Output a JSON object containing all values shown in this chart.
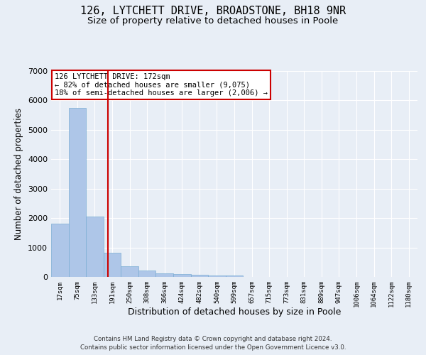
{
  "title": "126, LYTCHETT DRIVE, BROADSTONE, BH18 9NR",
  "subtitle": "Size of property relative to detached houses in Poole",
  "xlabel": "Distribution of detached houses by size in Poole",
  "ylabel": "Number of detached properties",
  "footnote1": "Contains HM Land Registry data © Crown copyright and database right 2024.",
  "footnote2": "Contains public sector information licensed under the Open Government Licence v3.0.",
  "bar_labels": [
    "17sqm",
    "75sqm",
    "133sqm",
    "191sqm",
    "250sqm",
    "308sqm",
    "366sqm",
    "424sqm",
    "482sqm",
    "540sqm",
    "599sqm",
    "657sqm",
    "715sqm",
    "773sqm",
    "831sqm",
    "889sqm",
    "947sqm",
    "1006sqm",
    "1064sqm",
    "1122sqm",
    "1180sqm"
  ],
  "bar_values": [
    1800,
    5750,
    2050,
    820,
    360,
    215,
    130,
    90,
    75,
    55,
    45,
    0,
    0,
    0,
    0,
    0,
    0,
    0,
    0,
    0,
    0
  ],
  "bar_color": "#aec6e8",
  "bar_edge_color": "#7aadd4",
  "vline_x": 2.75,
  "vline_color": "#cc0000",
  "annotation_text": "126 LYTCHETT DRIVE: 172sqm\n← 82% of detached houses are smaller (9,075)\n18% of semi-detached houses are larger (2,006) →",
  "annotation_box_color": "#ffffff",
  "annotation_box_edge": "#cc0000",
  "ylim": [
    0,
    7000
  ],
  "yticks": [
    0,
    1000,
    2000,
    3000,
    4000,
    5000,
    6000,
    7000
  ],
  "background_color": "#e8eef6",
  "plot_bg_color": "#e8eef6",
  "grid_color": "#ffffff",
  "title_fontsize": 11,
  "subtitle_fontsize": 9.5
}
